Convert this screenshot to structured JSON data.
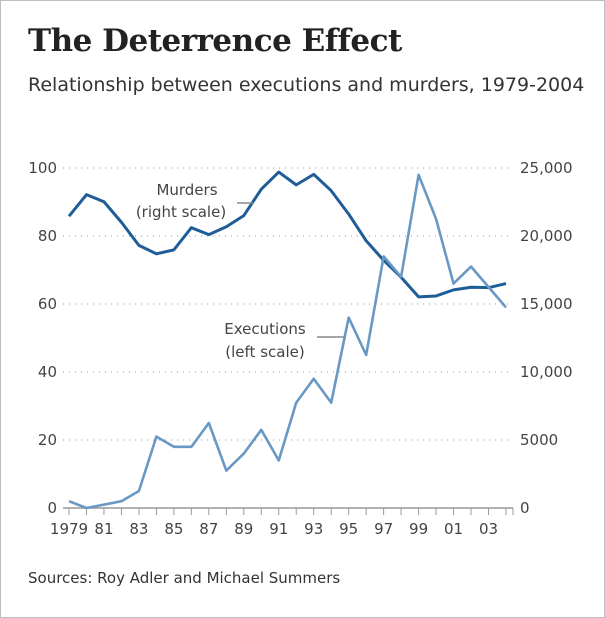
{
  "chart_data": {
    "type": "line",
    "title": "The Deterrence Effect",
    "subtitle": "Relationship between executions and murders, 1979-2004",
    "source": "Sources: Roy Adler and Michael Summers",
    "x": [
      1979,
      1980,
      1981,
      1982,
      1983,
      1984,
      1985,
      1986,
      1987,
      1988,
      1989,
      1990,
      1991,
      1992,
      1993,
      1994,
      1995,
      1996,
      1997,
      1998,
      1999,
      2000,
      2001,
      2002,
      2003,
      2004
    ],
    "x_tick_labels": [
      "1979",
      "81",
      "83",
      "85",
      "87",
      "89",
      "91",
      "93",
      "95",
      "97",
      "99",
      "01",
      "03"
    ],
    "left_axis": {
      "ylim": [
        0,
        100
      ],
      "ticks": [
        "0",
        "20",
        "40",
        "60",
        "80",
        "100"
      ]
    },
    "right_axis": {
      "ylim": [
        0,
        25000
      ],
      "ticks": [
        "0",
        "5000",
        "10,000",
        "15,000",
        "20,000",
        "25,000"
      ]
    },
    "grid": true,
    "series": [
      {
        "name": "Murders",
        "label_line2": "(right scale)",
        "axis": "right",
        "color": "#1f5d99",
        "values": [
          21460,
          23040,
          22520,
          21010,
          19310,
          18690,
          18980,
          20610,
          20100,
          20680,
          21500,
          23440,
          24700,
          23760,
          24530,
          23330,
          21610,
          19650,
          18210,
          16970,
          15520,
          15590,
          16040,
          16230,
          16200,
          16500
        ]
      },
      {
        "name": "Executions",
        "label_line2": "(left scale)",
        "axis": "left",
        "color": "#6a98c4",
        "values": [
          2,
          0,
          1,
          2,
          5,
          21,
          18,
          18,
          25,
          11,
          16,
          23,
          14,
          31,
          38,
          31,
          56,
          45,
          74,
          68,
          98,
          85,
          66,
          71,
          65,
          59
        ]
      }
    ]
  }
}
